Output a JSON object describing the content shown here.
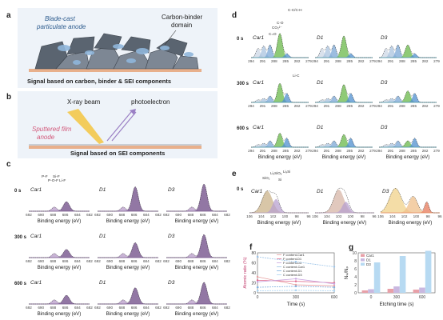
{
  "panel_letters": [
    "a",
    "b",
    "c",
    "d",
    "e",
    "f",
    "g"
  ],
  "panel_a": {
    "label_blade": "Blade-cast",
    "label_particulate": "particulate anode",
    "label_binder_1": "Carbon-binder",
    "label_binder_2": "domain",
    "caption": "Signal based on carbon, binder & SEI components"
  },
  "panel_b": {
    "label_xray": "X-ray beam",
    "label_photo": "photoelectron",
    "label_film_1": "Sputtered film",
    "label_film_2": "anode",
    "caption": "Signal based on SEI components"
  },
  "samples": [
    "Car1",
    "D1",
    "D3"
  ],
  "times": [
    "0 s",
    "300 s",
    "600 s"
  ],
  "xaxis_label": "Binding energy (eV)",
  "panel_c": {
    "ticks": [
      "692",
      "690",
      "688",
      "686",
      "684",
      "682"
    ],
    "peaks": [
      "P-F",
      "P-O-F",
      "Si-F",
      "Li-F"
    ]
  },
  "panel_d": {
    "ticks": [
      "294",
      "291",
      "288",
      "285",
      "282",
      "279"
    ],
    "peaks": [
      "CO₃²⁻",
      "C=O",
      "C-O",
      "C-C/C-H",
      "Li-C"
    ]
  },
  "panel_e": {
    "ticks": [
      "106",
      "104",
      "102",
      "100",
      "98",
      "96"
    ],
    "peaks": [
      "SiO₂",
      "LiₓSiOᵧ",
      "Si",
      "LiₓSi"
    ]
  },
  "chart_data": [
    {
      "type": "line",
      "panel": "f",
      "x": [
        0,
        300,
        600
      ],
      "xlabel": "Time (s)",
      "ylabel": "Atomic ratio (%)",
      "ylim": [
        0,
        80
      ],
      "yticks": [
        0,
        20,
        40,
        60,
        80
      ],
      "xticks": [
        "0",
        "300",
        "600"
      ],
      "legend_position": "top-left",
      "series": [
        {
          "name": "F content-Car1",
          "color": "#e8a0a0",
          "values": [
            32,
            16,
            14
          ]
        },
        {
          "name": "F content-D1",
          "color": "#e06a8c",
          "values": [
            25,
            23,
            20
          ]
        },
        {
          "name": "F content-D3",
          "color": "#c9a6e0",
          "values": [
            22,
            28,
            18
          ]
        },
        {
          "name": "C content-Car1",
          "color": "#9bc3e8",
          "values": [
            72,
            62,
            52
          ]
        },
        {
          "name": "C content-D1",
          "color": "#7fb0e0",
          "values": [
            11,
            13,
            11
          ]
        },
        {
          "name": "C content-D3",
          "color": "#aad4f2",
          "values": [
            4,
            5,
            4
          ]
        }
      ]
    },
    {
      "type": "bar",
      "panel": "g",
      "categories": [
        "0",
        "300",
        "600"
      ],
      "xlabel": "Etching time (s)",
      "ylabel": "Nₛᵢ/Nₚ",
      "ylim": [
        0,
        10
      ],
      "yticks": [
        0,
        2,
        4,
        6,
        8,
        10
      ],
      "legend_position": "top-left",
      "series": [
        {
          "name": "Car1",
          "color": "#e8a0a8",
          "values": [
            0.6,
            1.0,
            0.8
          ]
        },
        {
          "name": "D1",
          "color": "#c9b8e0",
          "values": [
            0.9,
            1.6,
            1.3
          ]
        },
        {
          "name": "D3",
          "color": "#b7daf2",
          "values": [
            7.6,
            9.2,
            10.5
          ]
        }
      ]
    }
  ],
  "colors": {
    "purple": "#6e4a86",
    "purple_light": "#b79bc9",
    "green": "#6ab94a",
    "blue": "#4f8fcf",
    "tan": "#d9b36f",
    "peach": "#eab48f",
    "anode_grey": "#5a6470",
    "anode_blue": "#8fb6da",
    "substrate": "#e8b08c"
  }
}
